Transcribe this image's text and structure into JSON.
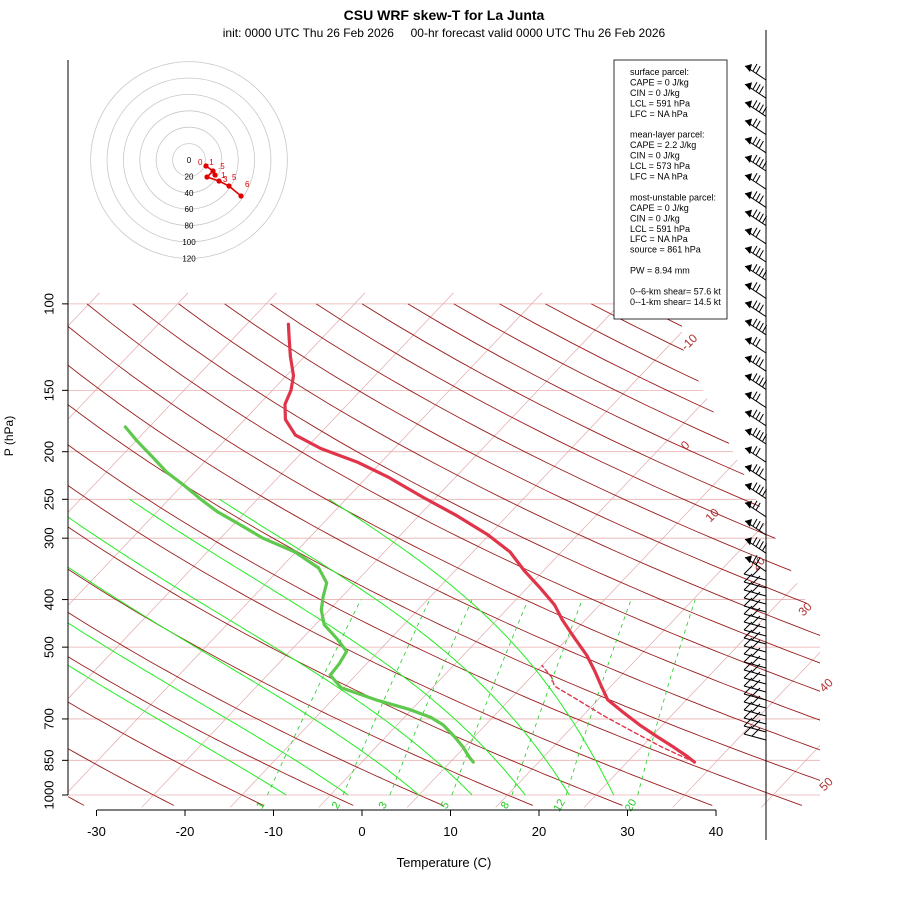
{
  "title": "CSU WRF skew-T for La Junta",
  "subtitle": "init: 0000 UTC Thu 26 Feb 2026     00-hr forecast valid 0000 UTC Thu 26 Feb 2026",
  "colors": {
    "temperature": "#e0344a",
    "dewpoint": "#5fc94e",
    "isotherm": "#b03030",
    "dry_adiabat": "#9a1e1e",
    "moist_adiabat": "#22ee22",
    "mixing_ratio": "#22cc22",
    "hodograph": "#e00000"
  },
  "info": {
    "lines": [
      "surface parcel:",
      "CAPE = 0 J/kg",
      "CIN = 0 J/kg",
      "LCL = 591 hPa",
      "LFC = NA hPa",
      "",
      "mean-layer parcel:",
      "CAPE = 2.2 J/kg",
      "CIN = 0 J/kg",
      "LCL = 573 hPa",
      "LFC = NA hPa",
      "",
      "most-unstable parcel:",
      "CAPE = 0 J/kg",
      "CIN = 0 J/kg",
      "LCL = 591 hPa",
      "LFC = NA hPa",
      "source = 861 hPa",
      "",
      "PW =  8.94 mm",
      "",
      "0--6-km shear= 57.6 kt",
      "0--1-km shear= 14.5 kt"
    ]
  },
  "chart_data": {
    "type": "line",
    "title": "CSU WRF skew-T for La Junta",
    "subtitle": "init: 0000 UTC Thu 26 Feb 2026     00-hr forecast valid 0000 UTC Thu 26 Feb 2026",
    "xlabel": "Temperature (C)",
    "ylabel": "P (hPa)",
    "x_ticks": [
      -30,
      -20,
      -10,
      0,
      10,
      20,
      30,
      40
    ],
    "y_ticks": [
      100,
      150,
      200,
      250,
      300,
      400,
      500,
      700,
      850,
      1000
    ],
    "y_scale": "log",
    "ylim": [
      1000,
      100
    ],
    "isotherm_labels": [
      "-10",
      "0",
      "10",
      "20",
      "30",
      "40",
      "50"
    ],
    "mixing_ratio_labels": [
      "1",
      "2",
      "3",
      "5",
      "8",
      "12",
      "20"
    ],
    "mixing_ratio_values": [
      1,
      2,
      3,
      5,
      8,
      12,
      20
    ],
    "series": [
      {
        "name": "temperature",
        "points": [
          {
            "p": 857,
            "t": 27.6
          },
          {
            "p": 835,
            "t": 26.2
          },
          {
            "p": 800,
            "t": 23.7
          },
          {
            "p": 760,
            "t": 20.6
          },
          {
            "p": 720,
            "t": 17.4
          },
          {
            "p": 680,
            "t": 14.3
          },
          {
            "p": 640,
            "t": 11.1
          },
          {
            "p": 600,
            "t": 8.9
          },
          {
            "p": 560,
            "t": 6.6
          },
          {
            "p": 520,
            "t": 4.0
          },
          {
            "p": 480,
            "t": 0.8
          },
          {
            "p": 440,
            "t": -2.6
          },
          {
            "p": 410,
            "t": -5.1
          },
          {
            "p": 380,
            "t": -8.4
          },
          {
            "p": 350,
            "t": -12.1
          },
          {
            "p": 320,
            "t": -15.8
          },
          {
            "p": 295,
            "t": -20.2
          },
          {
            "p": 270,
            "t": -25.7
          },
          {
            "p": 248,
            "t": -31.4
          },
          {
            "p": 225,
            "t": -37.7
          },
          {
            "p": 210,
            "t": -42.7
          },
          {
            "p": 197,
            "t": -48.3
          },
          {
            "p": 185,
            "t": -52.6
          },
          {
            "p": 172,
            "t": -55.4
          },
          {
            "p": 160,
            "t": -57.1
          },
          {
            "p": 150,
            "t": -57.9
          },
          {
            "p": 140,
            "t": -59.2
          },
          {
            "p": 128,
            "t": -61.6
          },
          {
            "p": 117,
            "t": -63.8
          },
          {
            "p": 110,
            "t": -65.3
          }
        ]
      },
      {
        "name": "dewpoint",
        "points": [
          {
            "p": 857,
            "t": 2.6
          },
          {
            "p": 835,
            "t": 1.5
          },
          {
            "p": 800,
            "t": -0.1
          },
          {
            "p": 760,
            "t": -2.3
          },
          {
            "p": 720,
            "t": -4.8
          },
          {
            "p": 695,
            "t": -7.0
          },
          {
            "p": 670,
            "t": -10.2
          },
          {
            "p": 640,
            "t": -15.1
          },
          {
            "p": 605,
            "t": -20.3
          },
          {
            "p": 570,
            "t": -22.9
          },
          {
            "p": 540,
            "t": -23.1
          },
          {
            "p": 510,
            "t": -23.6
          },
          {
            "p": 480,
            "t": -26.1
          },
          {
            "p": 450,
            "t": -29.0
          },
          {
            "p": 420,
            "t": -30.9
          },
          {
            "p": 395,
            "t": -32.1
          },
          {
            "p": 370,
            "t": -33.2
          },
          {
            "p": 345,
            "t": -35.7
          },
          {
            "p": 320,
            "t": -40.1
          },
          {
            "p": 300,
            "t": -45.2
          },
          {
            "p": 280,
            "t": -49.6
          },
          {
            "p": 265,
            "t": -53.2
          },
          {
            "p": 250,
            "t": -56.4
          },
          {
            "p": 235,
            "t": -59.6
          },
          {
            "p": 220,
            "t": -63.2
          },
          {
            "p": 205,
            "t": -66.4
          },
          {
            "p": 190,
            "t": -69.9
          },
          {
            "p": 178,
            "t": -72.7
          }
        ]
      },
      {
        "name": "parcel",
        "points": [
          {
            "p": 857,
            "t": 27.6
          },
          {
            "p": 800,
            "t": 22.4
          },
          {
            "p": 740,
            "t": 17.1
          },
          {
            "p": 690,
            "t": 12.4
          },
          {
            "p": 640,
            "t": 7.7
          },
          {
            "p": 600,
            "t": 3.6
          },
          {
            "p": 575,
            "t": 2.3
          },
          {
            "p": 545,
            "t": 0.0
          }
        ]
      }
    ],
    "hodograph": {
      "ring_labels": [
        "0",
        "20",
        "40",
        "60",
        "80",
        "100",
        "120"
      ],
      "height_labels": [
        "0",
        ".1",
        ".5",
        "1",
        "3",
        "5",
        "6"
      ]
    }
  }
}
